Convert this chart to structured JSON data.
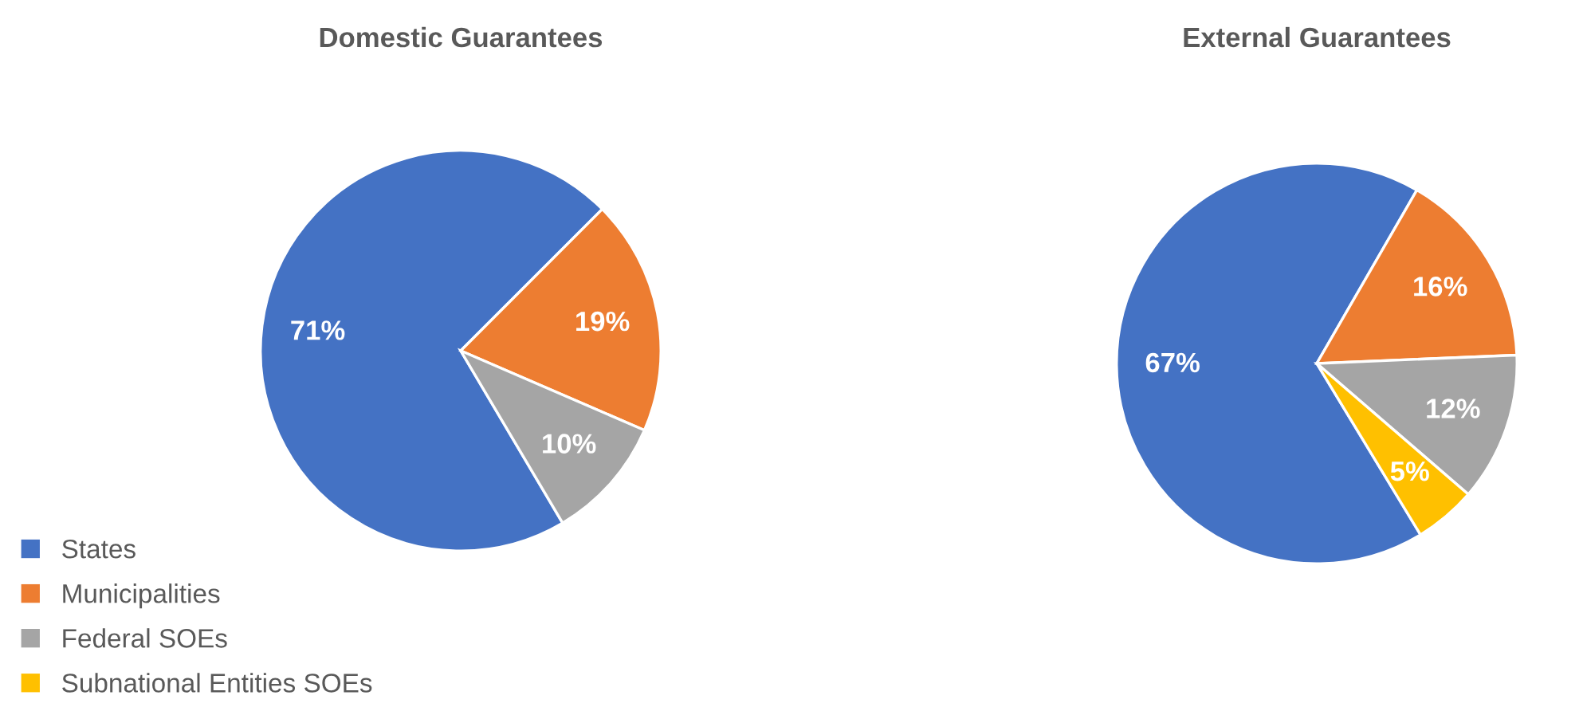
{
  "chart_data": [
    {
      "type": "pie",
      "title": "Domestic Guarantees",
      "categories": [
        "States",
        "Municipalities",
        "Federal SOEs",
        "Subnational Entities SOEs"
      ],
      "values": [
        71,
        19,
        10,
        null
      ],
      "colors": [
        "#4472c4",
        "#ed7d31",
        "#a5a5a5",
        "#ffc000"
      ],
      "value_labels": [
        "71%",
        "19%",
        "10%",
        null
      ],
      "legend": "bottom left"
    },
    {
      "type": "pie",
      "title": "External Guarantees",
      "categories": [
        null,
        null,
        null,
        null
      ],
      "values": [
        67,
        16,
        12,
        5
      ],
      "colors": [
        "#4472c4",
        "#ed7d31",
        "#a5a5a5",
        "#ffc000"
      ],
      "value_labels": [
        "67%",
        "16%",
        "12%",
        "5%"
      ]
    }
  ]
}
